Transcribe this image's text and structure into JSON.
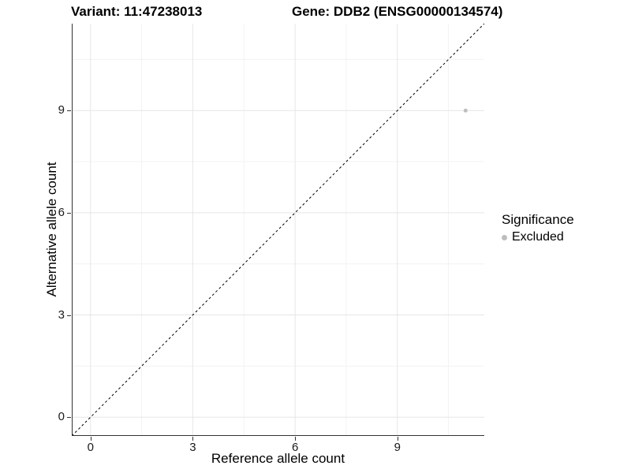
{
  "chart_data": {
    "type": "scatter",
    "title_variant": "Variant: 11:47238013",
    "title_gene": "Gene: DDB2 (ENSG00000134574)",
    "xlabel": "Reference allele count",
    "ylabel": "Alternative allele count",
    "xlim": [
      -0.55,
      11.55
    ],
    "ylim": [
      -0.55,
      11.55
    ],
    "x_ticks": [
      0,
      3,
      6,
      9
    ],
    "y_ticks": [
      0,
      3,
      6,
      9
    ],
    "x_minor_ticks": [
      1.5,
      4.5,
      7.5,
      10.5
    ],
    "y_minor_ticks": [
      1.5,
      4.5,
      7.5,
      10.5
    ],
    "series": [
      {
        "name": "Excluded",
        "color": "#bdbdbd",
        "points": [
          {
            "x": 11,
            "y": 9
          }
        ]
      }
    ],
    "reference_line": {
      "type": "identity y=x",
      "style": "dashed",
      "color": "#000000"
    },
    "legend": {
      "title": "Significance",
      "position": "right"
    },
    "grid": {
      "major": true,
      "minor": true
    }
  },
  "colors": {
    "background": "#ffffff",
    "axis_line": "#333333",
    "grid_major": "#e6e6e6",
    "grid_minor": "#f3f3f3",
    "tick_label": "#1a1a1a",
    "point": "#bdbdbd",
    "text": "#000000"
  }
}
